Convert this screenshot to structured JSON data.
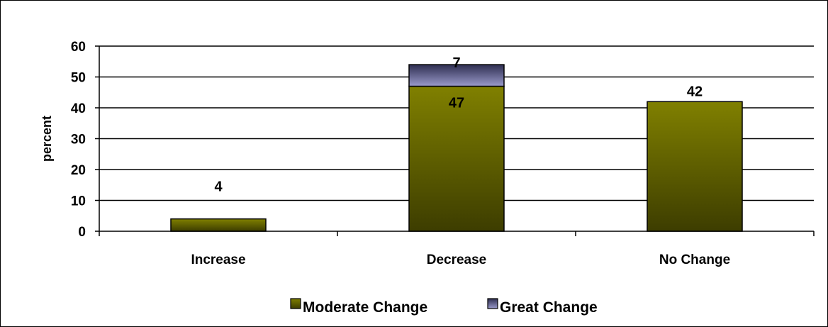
{
  "chart_data": {
    "type": "bar",
    "stacked": true,
    "categories": [
      "Increase",
      "Decrease",
      "No Change"
    ],
    "series": [
      {
        "name": "Moderate Change",
        "values": [
          4,
          47,
          42
        ],
        "color": "#7a7a00"
      },
      {
        "name": "Great Change",
        "values": [
          0,
          7,
          0
        ],
        "color": "#5a5a82"
      }
    ],
    "data_labels": [
      {
        "category": "Increase",
        "series": "Moderate Change",
        "text": "4"
      },
      {
        "category": "Decrease",
        "series": "Moderate Change",
        "text": "47"
      },
      {
        "category": "Decrease",
        "series": "Great Change",
        "text": "7"
      },
      {
        "category": "No Change",
        "series": "Moderate Change",
        "text": "42"
      }
    ],
    "xlabel": "",
    "ylabel": "percent",
    "ylim": [
      0,
      60
    ],
    "yticks": [
      0,
      10,
      20,
      30,
      40,
      50,
      60
    ],
    "grid": true,
    "legend_position": "bottom"
  }
}
